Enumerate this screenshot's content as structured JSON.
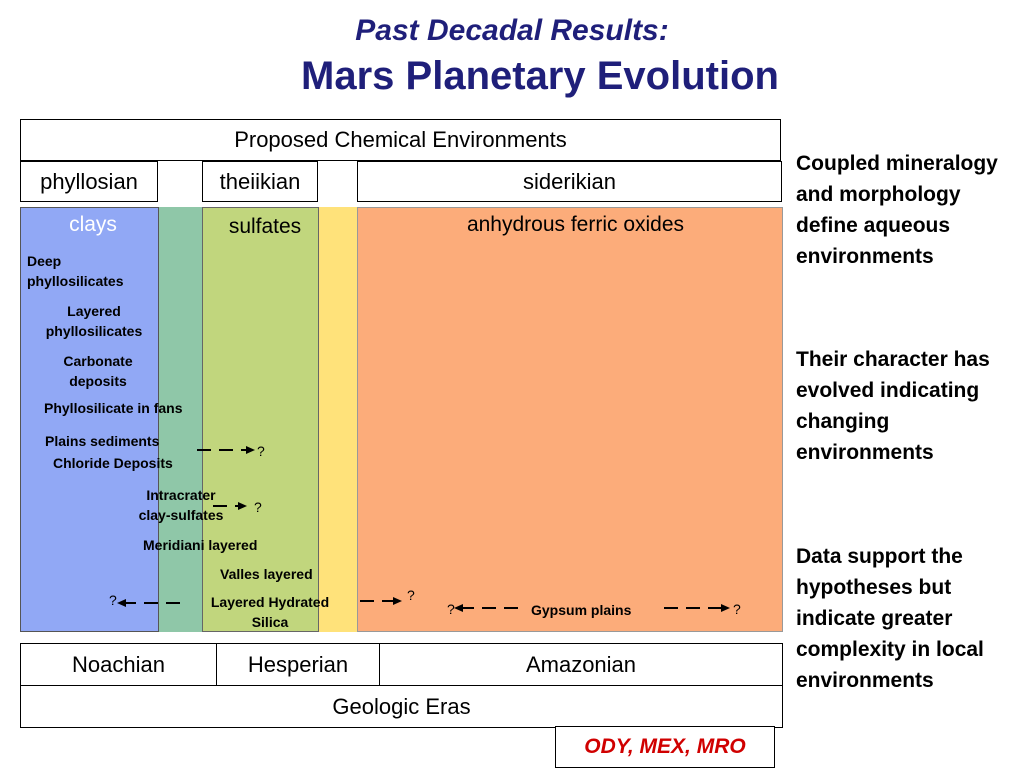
{
  "title": {
    "line1": "Past Decadal Results:",
    "line2": "Mars Planetary Evolution"
  },
  "header": {
    "environments": "Proposed Chemical Environments"
  },
  "eras_top": {
    "phyllosian": "phyllosian",
    "theiikian": "theiikian",
    "siderikian": "siderikian"
  },
  "bands": {
    "clays": "clays",
    "sulfates": "sulfates",
    "oxides": "anhydrous ferric oxides"
  },
  "labels": {
    "deep_phyllo": [
      "Deep",
      "phyllosilicates"
    ],
    "layered_phyllo": [
      "Layered",
      "phyllosilicates"
    ],
    "carbonate": [
      "Carbonate",
      "deposits"
    ],
    "fans": "Phyllosilicate in fans",
    "plains": "Plains sediments",
    "chloride": "Chloride Deposits",
    "intracrater": [
      "Intracrater",
      "clay-sulfates"
    ],
    "meridiani": "Meridiani layered",
    "valles": "Valles layered",
    "hydrated_silica": [
      "Layered Hydrated",
      "Silica"
    ],
    "gypsum": "Gypsum plains",
    "question": "?"
  },
  "geologic": {
    "noachian": "Noachian",
    "hesperian": "Hesperian",
    "amazonian": "Amazonian",
    "eras_label": "Geologic Eras"
  },
  "sidebar": {
    "p1": "Coupled mineralogy and morphology define aqueous environments",
    "p2": "Their character has evolved indicating changing environments",
    "p3": "Data support the hypotheses but indicate greater complexity in local environments"
  },
  "missions": "ODY, MEX, MRO",
  "colors": {
    "clays": "#91a8f5",
    "green": "#8fc7a8",
    "sulfates": "#c1d67d",
    "yellow": "#ffe27a",
    "oxides": "#fcac7a",
    "title": "#1f1f7a",
    "missions": "#d00000"
  }
}
